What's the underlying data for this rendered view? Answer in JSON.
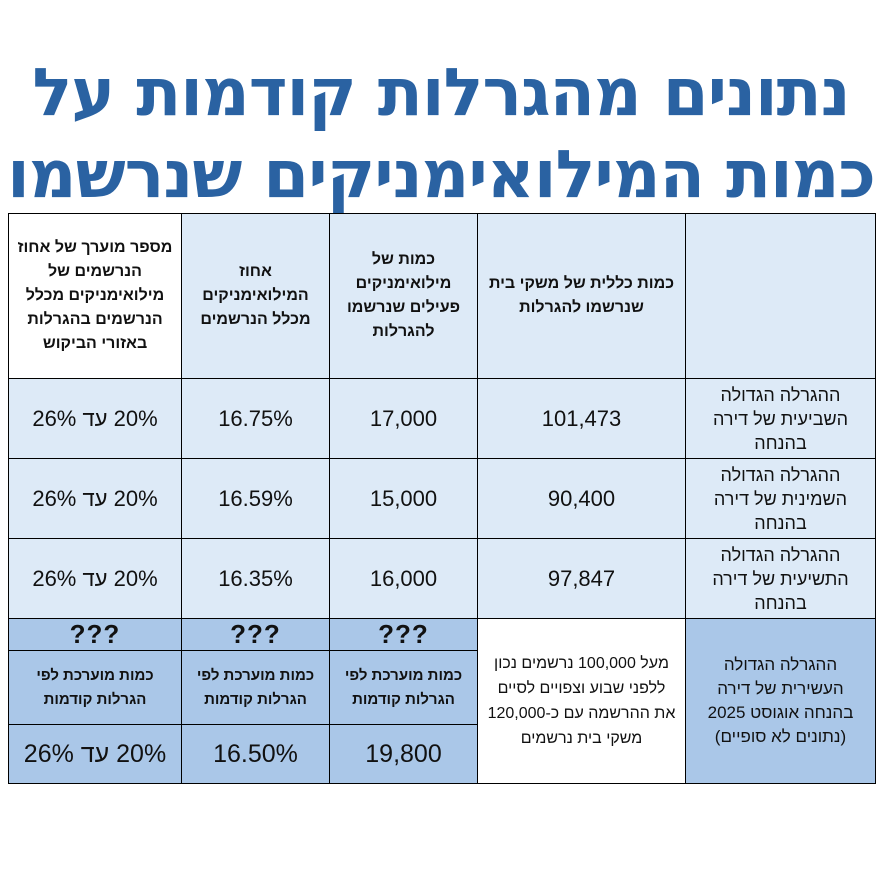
{
  "title": {
    "line1": "נתונים מהגרלות קודמות על",
    "line2": "כמות המילואימניקים שנרשמו"
  },
  "table": {
    "headers": {
      "draw": "",
      "total_households": "כמות כללית של משקי בית שנרשמו להגרלות",
      "reservists_count": "כמות של מילואימניקים פעילים שנרשמו להגרלות",
      "reservists_percent": "אחוז המילואימניקים מכלל הנרשמים",
      "demand_areas_percent": "מספר מוערך של אחוז הנרשמים של מילואימניקים מכלל הנרשמים בהגרלות באזורי הביקוש"
    },
    "rows": [
      {
        "draw": "ההגרלה הגדולה השביעית של דירה בהנחה",
        "total": "101,473",
        "reservists": "17,000",
        "percent": "16.75%",
        "demand": "20% עד 26%"
      },
      {
        "draw": "ההגרלה הגדולה השמינית של דירה בהנחה",
        "total": "90,400",
        "reservists": "15,000",
        "percent": "16.59%",
        "demand": "20% עד 26%"
      },
      {
        "draw": "ההגרלה הגדולה התשיעית של דירה בהנחה",
        "total": "97,847",
        "reservists": "16,000",
        "percent": "16.35%",
        "demand": "20% עד 26%"
      }
    ],
    "last_row": {
      "draw": "ההגרלה הגדולה העשירית של דירה בהנחה אוגוסט 2025 (נתונים לא סופיים)",
      "total_note": "מעל 100,000 נרשמים נכון ללפני שבוע וצפויים לסיים את ההרשמה עם כ-120,000 משקי בית נרשמים",
      "question_marks": "???",
      "estimate_label": "כמות מוערכת לפי הגרלות קודמות",
      "reservists": "19,800",
      "percent": "16.50%",
      "demand": "20% עד 26%"
    }
  },
  "colors": {
    "title": "#2a62a2",
    "light_cell": "#ddeaf7",
    "blue_cell": "#aac7e8",
    "alert_red": "#e02020"
  }
}
